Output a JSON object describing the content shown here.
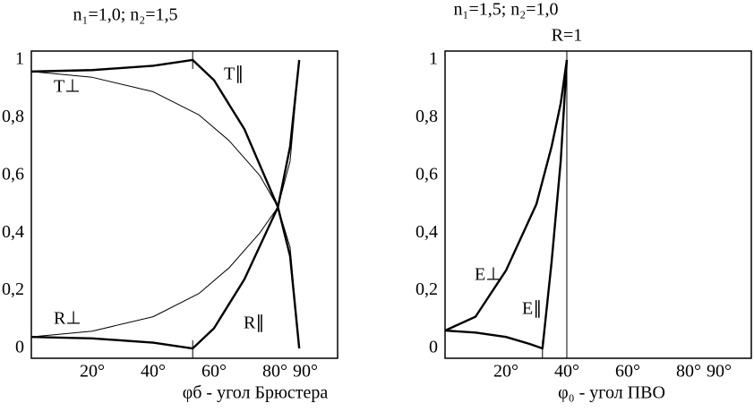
{
  "chart_data": [
    {
      "type": "line",
      "annotation": "n₁=1,0; n₂=1,5",
      "xlabel": "φб - угол Брюстера",
      "xlim": [
        0,
        100.6
      ],
      "xticks": [
        {
          "value": 20,
          "label": "20°"
        },
        {
          "value": 40,
          "label": "40°"
        },
        {
          "value": 60,
          "label": "60°"
        },
        {
          "value": 80,
          "label": "80°"
        },
        {
          "value": 90,
          "label": "90°"
        }
      ],
      "ylim": [
        -0.034,
        1.031
      ],
      "yticks": [
        0,
        {
          "value": 0.2,
          "label": "0,2"
        },
        {
          "value": 0.4,
          "label": "0,4"
        },
        {
          "value": 0.6,
          "label": "0,6"
        },
        {
          "value": 0.8,
          "label": "0,8"
        },
        1
      ],
      "grid": false,
      "marker_x": 53,
      "series": [
        {
          "name": "T∥",
          "color": "#000000",
          "linewidth": 2.4,
          "x": [
            0,
            20,
            40,
            53,
            60,
            70,
            81,
            85,
            88
          ],
          "values": [
            0.96,
            0.965,
            0.98,
            1.0,
            0.93,
            0.76,
            0.49,
            0.32,
            0
          ]
        },
        {
          "name": "R∥",
          "color": "#000000",
          "linewidth": 2.4,
          "x": [
            0,
            20,
            40,
            53,
            60,
            70,
            81,
            85,
            88
          ],
          "values": [
            0.04,
            0.035,
            0.02,
            0,
            0.07,
            0.24,
            0.49,
            0.7,
            1.0
          ]
        },
        {
          "name": "T⊥",
          "color": "#000000",
          "linewidth": 1,
          "x": [
            0,
            20,
            40,
            55,
            65,
            75,
            81,
            85,
            88
          ],
          "values": [
            0.96,
            0.94,
            0.89,
            0.81,
            0.72,
            0.6,
            0.49,
            0.35,
            0
          ]
        },
        {
          "name": "R⊥",
          "color": "#000000",
          "linewidth": 1,
          "x": [
            0,
            20,
            40,
            55,
            65,
            75,
            81,
            85,
            88
          ],
          "values": [
            0.04,
            0.06,
            0.11,
            0.19,
            0.28,
            0.4,
            0.49,
            0.65,
            1.0
          ]
        }
      ]
    },
    {
      "type": "line",
      "annotation": "n₁=1,5; n₂=1,0",
      "xlabel": "φ₀ - угол ПВО",
      "xlim": [
        0,
        100.6
      ],
      "xticks": [
        {
          "value": 20,
          "label": "20°"
        },
        {
          "value": 40,
          "label": "40°"
        },
        {
          "value": 60,
          "label": "60°"
        },
        {
          "value": 80,
          "label": "80°"
        },
        {
          "value": 90,
          "label": "90°"
        }
      ],
      "ylim": [
        -0.034,
        1.031
      ],
      "yticks": [
        0,
        {
          "value": 0.2,
          "label": "0,2"
        },
        {
          "value": 0.4,
          "label": "0,4"
        },
        {
          "value": 0.6,
          "label": "0,6"
        },
        {
          "value": 0.8,
          "label": "0,8"
        },
        1
      ],
      "grid": false,
      "marker_x": 32,
      "vline": {
        "x": 40,
        "label": "R=1"
      },
      "series": [
        {
          "name": "E⊥",
          "color": "#000000",
          "linewidth": 2.4,
          "x": [
            0,
            10,
            20,
            30,
            35,
            38,
            40
          ],
          "values": [
            0.062,
            0.11,
            0.27,
            0.5,
            0.7,
            0.85,
            1.0
          ]
        },
        {
          "name": "E∥",
          "color": "#000000",
          "linewidth": 2.4,
          "x": [
            0,
            10,
            20,
            28,
            32,
            35,
            38,
            40
          ],
          "values": [
            0.062,
            0.055,
            0.04,
            0.015,
            0,
            0.3,
            0.65,
            1.0
          ]
        }
      ]
    }
  ]
}
